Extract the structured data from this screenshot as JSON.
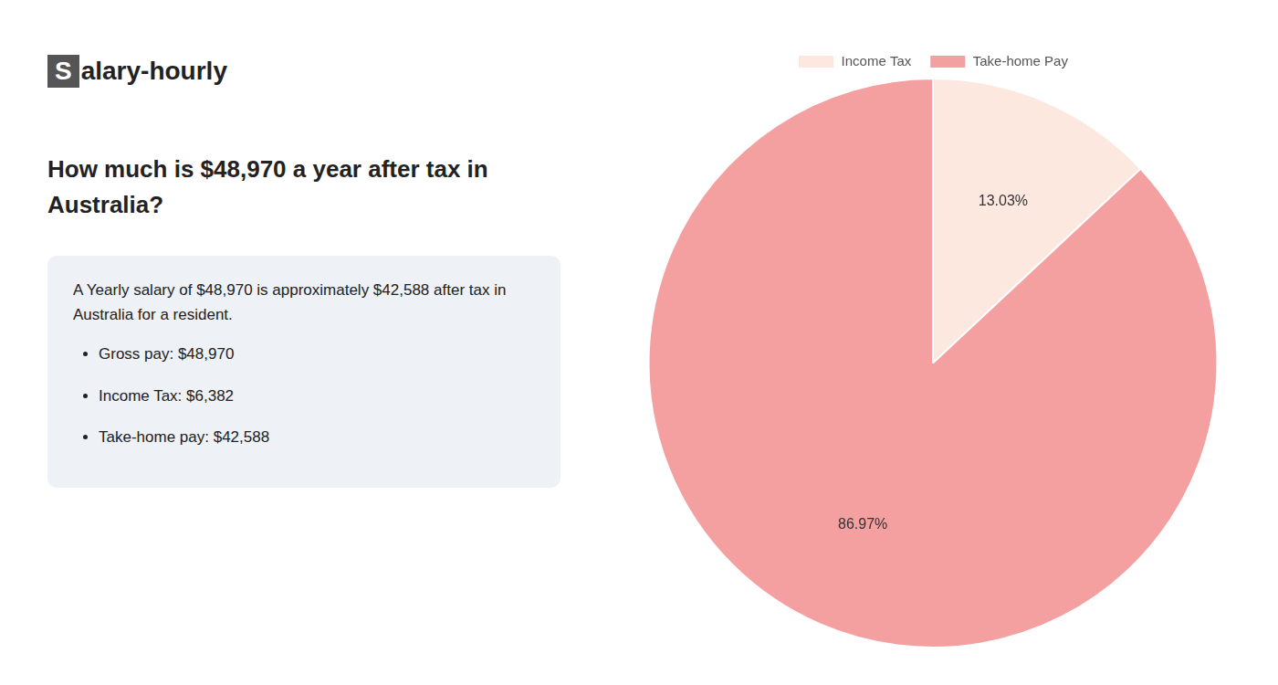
{
  "chart_data": {
    "type": "pie",
    "title": [
      "How much is $48,970 a year after tax in",
      "Australia?"
    ],
    "categories": [
      "Income Tax",
      "Take-home Pay"
    ],
    "values": [
      13.03,
      86.97
    ],
    "value_labels": [
      "13.03%",
      "86.97%"
    ],
    "data_labels": true,
    "colors": [
      "#fde8e0",
      "#f4a0a0"
    ],
    "legend": "top",
    "annotations": [
      "Salary-hourly",
      "A Yearly salary of $48,970 is approximately $42,588 after tax in Australia for a resident.",
      "Gross pay: $48,970",
      "Income Tax: $6,382",
      "Take-home pay: $42,588"
    ]
  }
}
